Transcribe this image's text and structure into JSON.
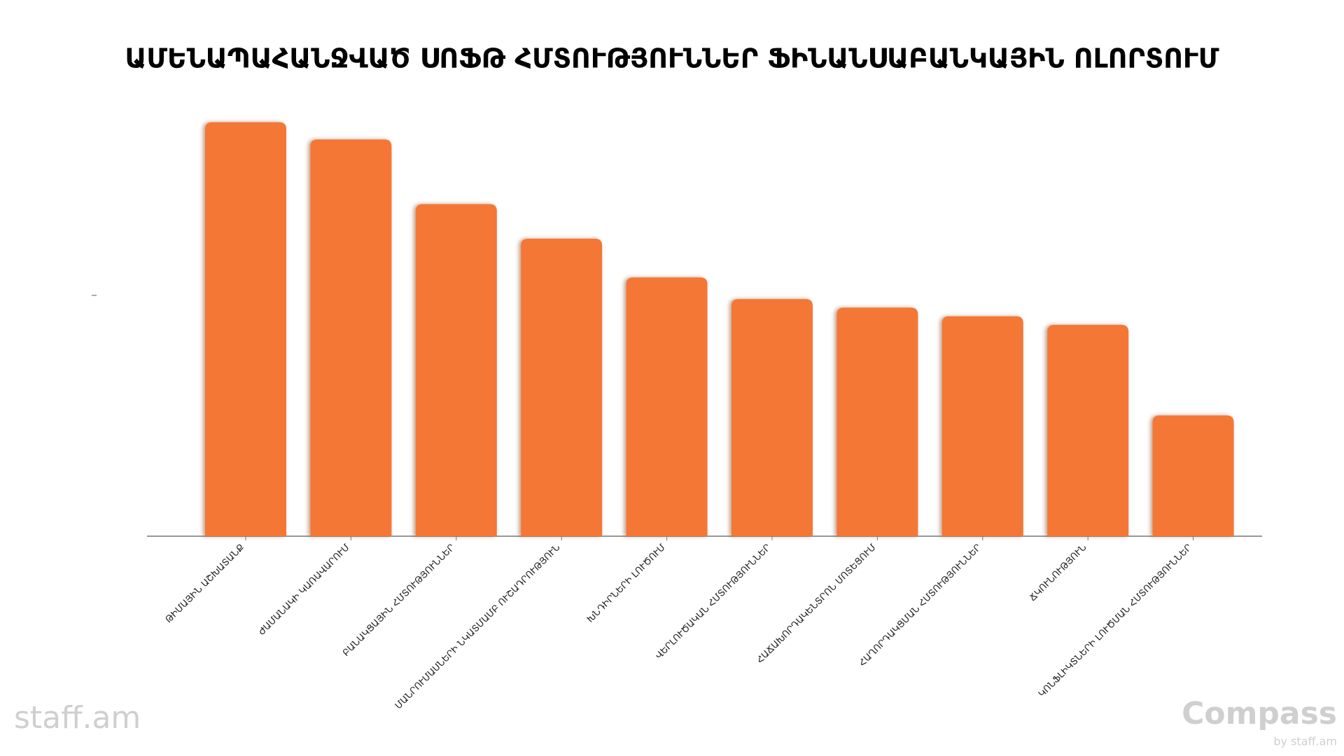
{
  "chart_data": {
    "type": "bar",
    "title": "ԱՄԵՆԱՊԱՀԱՆՋՎԱԾ ՍՈՖԹ ՀՄՏՈՒԹՅՈՒՆՆԵՐ ՖԻՆԱՆՍԱԲԱՆԿԱՅԻՆ ՈԼՈՐՏՈՒՄ",
    "categories": [
      "ԹԻՄԱՅԻՆ ԱՇԽԱՏԱՆՔ",
      "ԺԱՄԱՆԱԿԻ ԿԱՌԱՎԱՐՈՒՄ",
      "ԲԱՆԱԿՑԱՅԻՆ ՀՄՏՈՒԹՅՈՒՆՆԵՐ",
      "ՄԱՆՐՈՒՄԱՍՆԵՐԻ ՆԿԱՏՄԱՄԲ ՈՒՇԱԴՐՈՒԹՅՈՒՆ",
      "ԽՆԴԻՐՆԵՐԻ ԼՈՒԾՈՒՄ",
      "ՎԵՐԼՈՒԾԱԿԱՆ ՀՄՏՈՒԹՅՈՒՆՆԵՐ",
      "ՀԱՃԱԽՈՐԴԱԿԵՆՏՐՈՆ ՄՈՏԵՑՈՒՄ",
      "ՀԱՂՈՐԴԱԿՑՄԱՆ ՀՄՏՈՒԹՅՈՒՆՆԵՐ",
      "ՃԿՈՒՆՈՒԹՅՈՒՆ",
      "ԿՈՆՖԼԻԿՏՆԵՐԻ ԼՈՒԾՄԱՆ ՀՄՏՈՒԹՅՈՒՆՆԵՐ"
    ],
    "values": [
      96,
      92,
      77,
      69,
      60,
      55,
      53,
      51,
      49,
      28
    ],
    "color": "#f47735",
    "ylim": [
      0,
      100
    ]
  },
  "branding": {
    "left": "staff.am",
    "right": "Compass",
    "right_sub": "by staff.am"
  }
}
